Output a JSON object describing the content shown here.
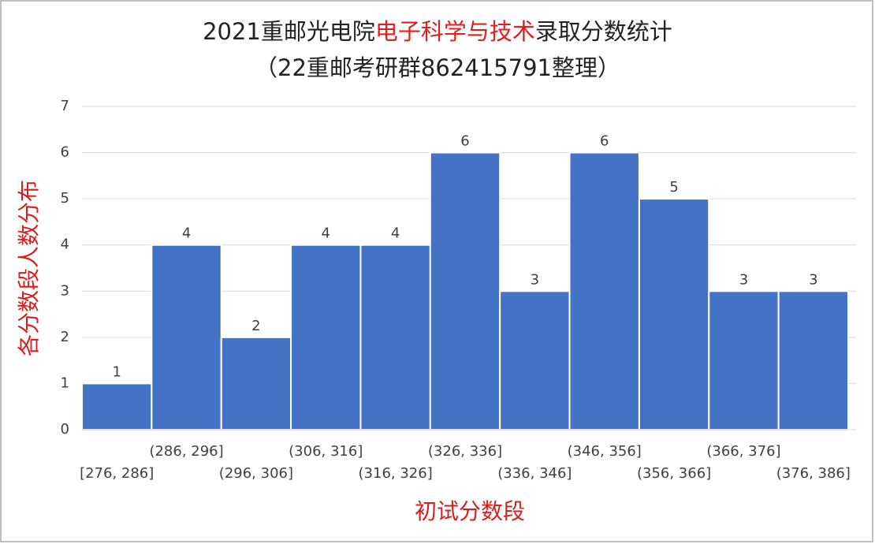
{
  "chart_data": {
    "type": "bar",
    "title": [
      {
        "text": "2021重邮光电院",
        "color": "#222222"
      },
      {
        "text": "电子科学与技术",
        "color": "#e02020"
      },
      {
        "text": "录取分数统计",
        "color": "#222222"
      }
    ],
    "subtitle": "（22重邮考研群862415791整理）",
    "x_label": "初试分数段",
    "y_label": "各分数段人数分布",
    "label_color": "#d42020",
    "categories": [
      "[276, 286]",
      "(286, 296]",
      "(296, 306]",
      "(306, 316]",
      "(316, 326]",
      "(326, 336]",
      "(336, 346]",
      "(346, 356]",
      "(356, 366]",
      "(366, 376]",
      "(376, 386]"
    ],
    "values": [
      1,
      4,
      2,
      4,
      4,
      6,
      3,
      6,
      5,
      3,
      3
    ],
    "color": "#4472c4",
    "ylim": [
      0,
      7
    ],
    "yticks": [
      0,
      1,
      2,
      3,
      4,
      5,
      6,
      7
    ],
    "grid": true
  }
}
